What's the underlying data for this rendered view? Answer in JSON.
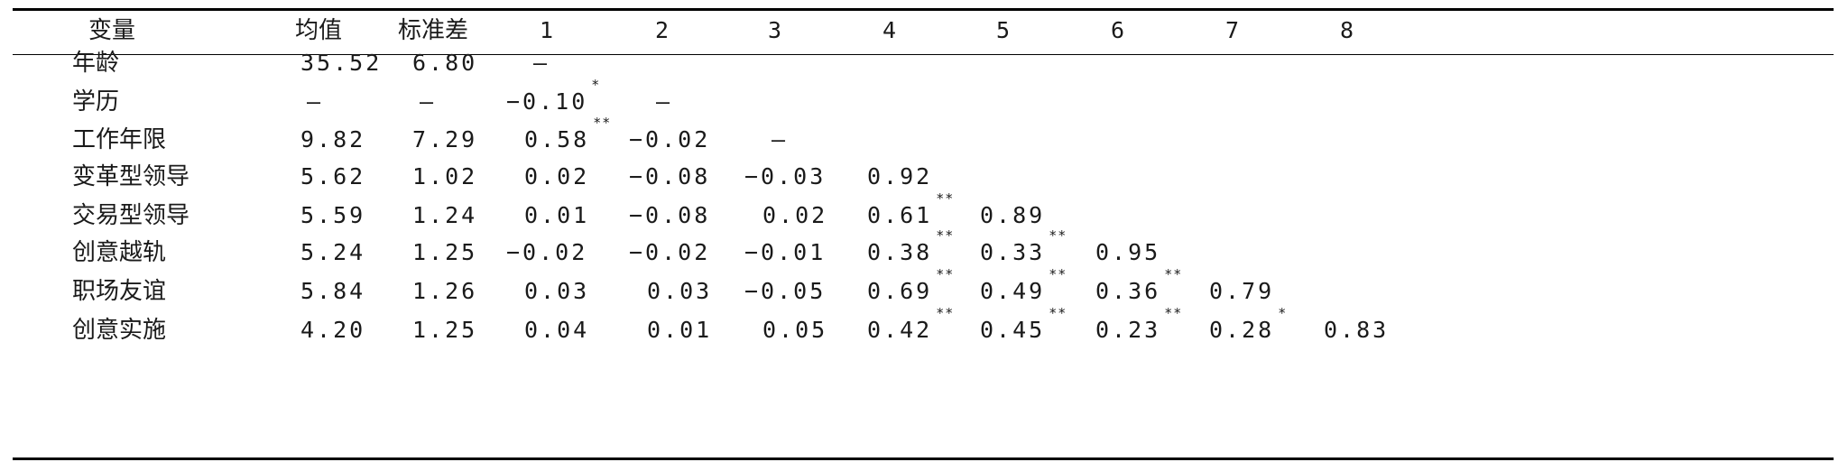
{
  "header": [
    "变量",
    "均值",
    "标准差",
    "1",
    "2",
    "3",
    "4",
    "5",
    "6",
    "7",
    "8"
  ],
  "rows": [
    {
      "label": "年龄",
      "mean": "35.52",
      "sd": "6.80",
      "c": [
        "—"
      ]
    },
    {
      "label": "学历",
      "mean": "—",
      "sd": "—",
      "c": [
        "−0.10",
        "—"
      ],
      "s": [
        "*"
      ]
    },
    {
      "label": "工作年限",
      "mean": "9.82",
      "sd": "7.29",
      "c": [
        "0.58",
        "−0.02",
        "—"
      ],
      "s": [
        "**"
      ]
    },
    {
      "label": "变革型领导",
      "mean": "5.62",
      "sd": "1.02",
      "c": [
        "0.02",
        "−0.08",
        "−0.03",
        "0.92"
      ]
    },
    {
      "label": "交易型领导",
      "mean": "5.59",
      "sd": "1.24",
      "c": [
        "0.01",
        "−0.08",
        "0.02",
        "0.61",
        "0.89"
      ],
      "s": [
        "",
        "",
        "",
        "**"
      ]
    },
    {
      "label": "创意越轨",
      "mean": "5.24",
      "sd": "1.25",
      "c": [
        "−0.02",
        "−0.02",
        "−0.01",
        "0.38",
        "0.33",
        "0.95"
      ],
      "s": [
        "",
        "",
        "",
        "**",
        "**"
      ]
    },
    {
      "label": "职场友谊",
      "mean": "5.84",
      "sd": "1.26",
      "c": [
        "0.03",
        "0.03",
        "−0.05",
        "0.69",
        "0.49",
        "0.36",
        "0.79"
      ],
      "s": [
        "",
        "",
        "",
        "**",
        "**",
        "**"
      ]
    },
    {
      "label": "创意实施",
      "mean": "4.20",
      "sd": "1.25",
      "c": [
        "0.04",
        "0.01",
        "0.05",
        "0.42",
        "0.45",
        "0.23",
        "0.28",
        "0.83"
      ],
      "s": [
        "",
        "",
        "",
        "**",
        "**",
        "**",
        "*"
      ]
    }
  ]
}
